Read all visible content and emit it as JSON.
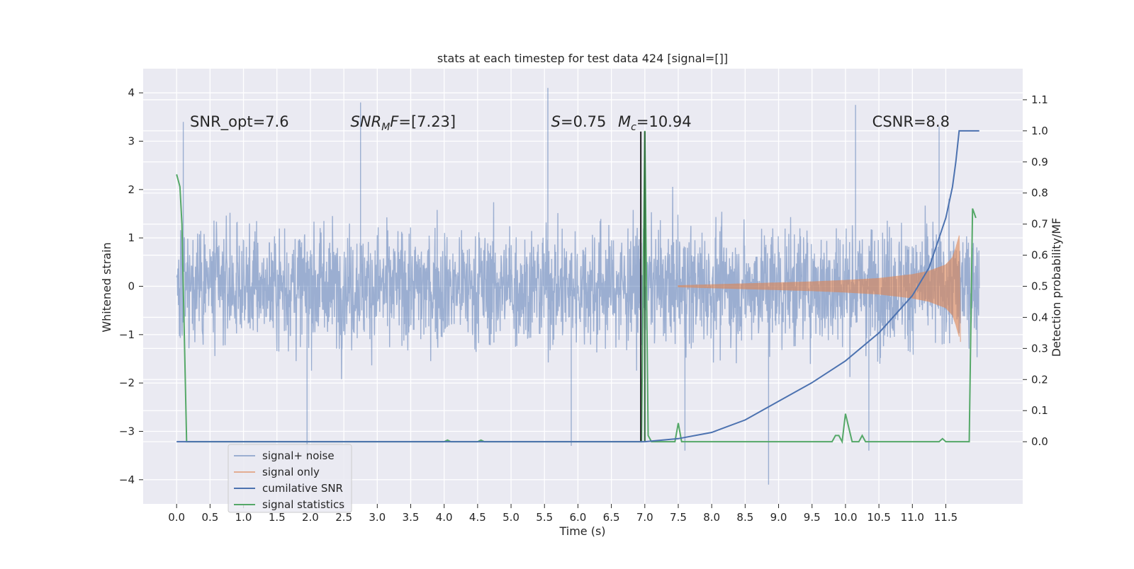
{
  "chart_data": {
    "type": "line",
    "title": "stats at each timestep for test data 424 [signal=[]]",
    "xlabel": "Time (s)",
    "ylabel_left": "Whitened strain",
    "ylabel_right": "Detection probability/MF",
    "xlim": [
      -0.5,
      12.65
    ],
    "ylim_left": [
      -4.5,
      4.5
    ],
    "ylim_right": [
      -0.2,
      1.2
    ],
    "grid": true,
    "legend_position": "lower-left",
    "x_ticks": [
      0.0,
      0.5,
      1.0,
      1.5,
      2.0,
      2.5,
      3.0,
      3.5,
      4.0,
      4.5,
      5.0,
      5.5,
      6.0,
      6.5,
      7.0,
      7.5,
      8.0,
      8.5,
      9.0,
      9.5,
      10.0,
      10.5,
      11.0,
      11.5
    ],
    "x_tick_labels": [
      "0.0",
      "0.5",
      "1.0",
      "1.5",
      "2.0",
      "2.5",
      "3.0",
      "3.5",
      "4.0",
      "4.5",
      "5.0",
      "5.5",
      "6.0",
      "6.5",
      "7.0",
      "7.5",
      "8.0",
      "8.5",
      "9.0",
      "9.5",
      "10.0",
      "10.5",
      "11.0",
      "11.5"
    ],
    "y_left_ticks": [
      4,
      3,
      2,
      1,
      0,
      -1,
      -2,
      -3,
      -4
    ],
    "y_left_tick_labels": [
      "4",
      "3",
      "2",
      "1",
      "0",
      "−1",
      "−2",
      "−3",
      "−4"
    ],
    "y_right_ticks": [
      1.1,
      1.0,
      0.9,
      0.8,
      0.7,
      0.6,
      0.5,
      0.4,
      0.3,
      0.2,
      0.1,
      0.0
    ],
    "y_right_tick_labels": [
      "1.1",
      "1.0",
      "0.9",
      "0.8",
      "0.7",
      "0.6",
      "0.5",
      "0.4",
      "0.3",
      "0.2",
      "0.1",
      "0.0"
    ],
    "annotations": [
      {
        "id": "snr-opt",
        "text": "SNR_opt=7.6",
        "x": 0.2,
        "y": 3.3
      },
      {
        "id": "snr-mf",
        "text": "SNR_MF=[7.23]",
        "x": 2.6,
        "y": 3.3
      },
      {
        "id": "s-val",
        "text": "S=0.75",
        "x": 5.6,
        "y": 3.3
      },
      {
        "id": "mc-val",
        "text": "M_c=10.94",
        "x": 6.6,
        "y": 3.3
      },
      {
        "id": "csnr",
        "text": "CSNR=8.8",
        "x": 10.4,
        "y": 3.3
      }
    ],
    "vertical_lines": [
      {
        "x": 6.94,
        "ymin": -3.2,
        "ymax": 3.2,
        "color": "#222222"
      },
      {
        "x": 7.0,
        "ymin": -3.2,
        "ymax": 3.2,
        "color": "#2f6b3a"
      }
    ],
    "series": [
      {
        "name": "signal+ noise",
        "axis": "left",
        "color": "#4c72b0",
        "kind": "noise",
        "t_range": [
          0.0,
          12.0
        ],
        "core_band": [
          -1.3,
          1.3
        ],
        "typical_peaks": [
          -2.2,
          2.2
        ],
        "extreme_points": [
          {
            "x": 0.1,
            "y": 3.4
          },
          {
            "x": 2.75,
            "y": 3.8
          },
          {
            "x": 5.55,
            "y": 4.1
          },
          {
            "x": 10.15,
            "y": 3.75
          },
          {
            "x": 11.4,
            "y": 3.3
          },
          {
            "x": 1.95,
            "y": -3.5
          },
          {
            "x": 5.9,
            "y": -3.3
          },
          {
            "x": 7.6,
            "y": -3.4
          },
          {
            "x": 8.85,
            "y": -4.1
          },
          {
            "x": 10.35,
            "y": -3.4
          }
        ]
      },
      {
        "name": "signal only",
        "axis": "left",
        "color": "#dd8452",
        "kind": "chirp",
        "x": [
          7.5,
          8.0,
          8.5,
          9.0,
          9.5,
          10.0,
          10.5,
          11.0,
          11.25,
          11.5,
          11.6,
          11.65,
          11.7
        ],
        "envelope": [
          0.02,
          0.04,
          0.06,
          0.08,
          0.1,
          0.13,
          0.17,
          0.25,
          0.32,
          0.45,
          0.6,
          0.8,
          1.05
        ]
      },
      {
        "name": "cumilative SNR",
        "axis": "right",
        "color": "#4c72b0",
        "x": [
          0.0,
          7.0,
          7.5,
          8.0,
          8.5,
          9.0,
          9.5,
          10.0,
          10.5,
          11.0,
          11.25,
          11.5,
          11.6,
          11.65,
          11.7,
          11.72,
          12.0
        ],
        "values": [
          0.0,
          0.0,
          0.01,
          0.03,
          0.07,
          0.13,
          0.19,
          0.26,
          0.35,
          0.47,
          0.56,
          0.72,
          0.82,
          0.9,
          1.0,
          1.0,
          1.0
        ]
      },
      {
        "name": "signal statistics",
        "axis": "right",
        "color": "#55a868",
        "x": [
          0.0,
          0.05,
          0.08,
          0.15,
          4.0,
          4.05,
          4.1,
          4.5,
          4.55,
          4.6,
          6.95,
          6.98,
          7.0,
          7.02,
          7.05,
          7.1,
          7.45,
          7.5,
          7.55,
          9.8,
          9.85,
          9.9,
          9.95,
          10.0,
          10.1,
          10.15,
          10.2,
          10.25,
          10.3,
          11.4,
          11.45,
          11.5,
          11.85,
          11.9,
          11.95
        ],
        "values": [
          0.86,
          0.82,
          0.7,
          0.0,
          0.0,
          0.005,
          0.0,
          0.0,
          0.005,
          0.0,
          0.0,
          0.6,
          1.0,
          0.6,
          0.02,
          0.0,
          0.0,
          0.06,
          0.0,
          0.0,
          0.02,
          0.02,
          0.0,
          0.09,
          0.0,
          0.0,
          0.0,
          0.02,
          0.0,
          0.0,
          0.01,
          0.0,
          0.0,
          0.75,
          0.72
        ]
      }
    ]
  }
}
